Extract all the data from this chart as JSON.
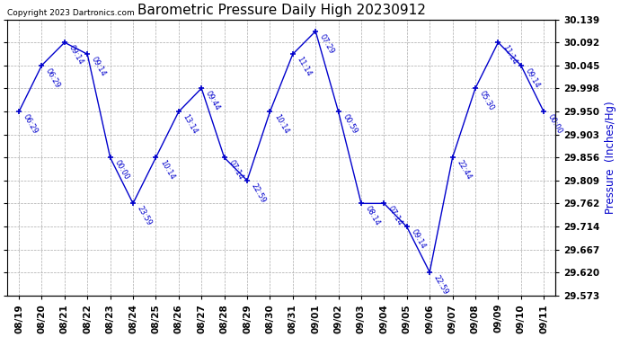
{
  "title": "Barometric Pressure Daily High 20230912",
  "ylabel": "Pressure  (Inches/Hg)",
  "copyright": "Copyright 2023 Dartronics.com",
  "dates": [
    "08/19",
    "08/20",
    "08/21",
    "08/22",
    "08/23",
    "08/24",
    "08/25",
    "08/26",
    "08/27",
    "08/28",
    "08/29",
    "08/30",
    "08/31",
    "09/01",
    "09/02",
    "09/03",
    "09/04",
    "09/05",
    "09/06",
    "09/07",
    "09/08",
    "09/09",
    "09/10",
    "09/11"
  ],
  "values": [
    29.95,
    30.045,
    30.092,
    30.068,
    29.856,
    29.762,
    29.856,
    29.95,
    29.998,
    29.856,
    29.809,
    29.95,
    30.068,
    30.115,
    29.95,
    29.762,
    29.762,
    29.714,
    29.621,
    29.856,
    29.998,
    30.092,
    30.045,
    29.95
  ],
  "times": [
    "06:29",
    "06:29",
    "09:14",
    "09:14",
    "00:00",
    "23:59",
    "10:14",
    "13:14",
    "09:44",
    "07:14",
    "22:59",
    "10:14",
    "11:14",
    "07:29",
    "00:59",
    "08:14",
    "07:14",
    "09:14",
    "22:59",
    "22:44",
    "05:30",
    "11:14",
    "09:14",
    "00:00"
  ],
  "ylim_min": 29.573,
  "ylim_max": 30.139,
  "yticks": [
    29.573,
    29.62,
    29.667,
    29.714,
    29.762,
    29.809,
    29.856,
    29.903,
    29.95,
    29.998,
    30.045,
    30.092,
    30.139
  ],
  "line_color": "#0000CC",
  "plot_bg": "#ffffff",
  "fig_bg": "#ffffff",
  "title_fontsize": 11,
  "tick_fontsize": 7.5,
  "annot_fontsize": 6,
  "ylabel_fontsize": 8.5,
  "copyright_fontsize": 6.5
}
